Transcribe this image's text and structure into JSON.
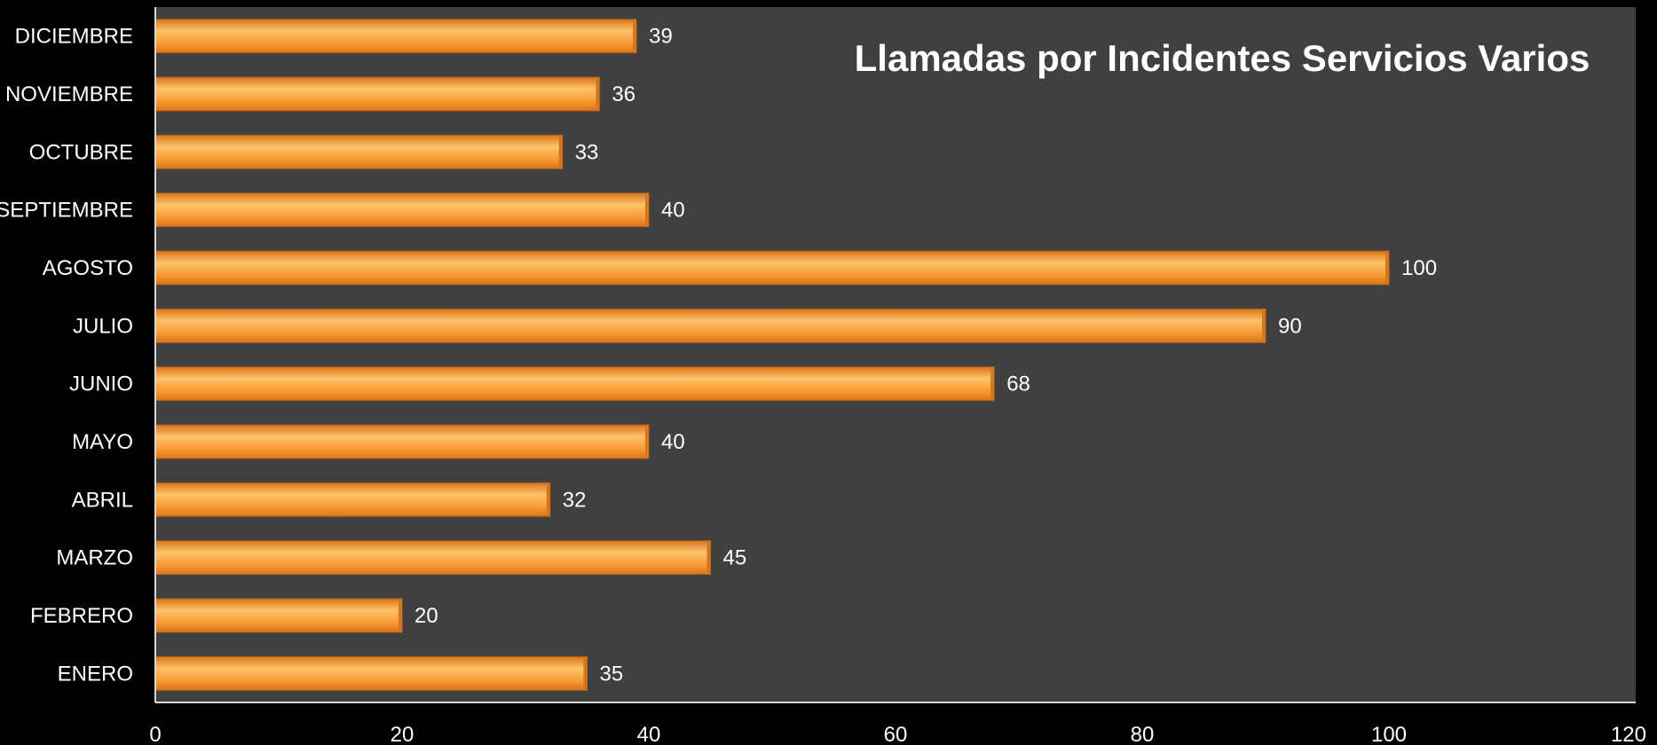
{
  "chart_data": {
    "type": "bar",
    "orientation": "horizontal",
    "title": "Llamadas por Incidentes Servicios Varios",
    "xlabel": "",
    "ylabel": "",
    "categories": [
      "ENERO",
      "FEBRERO",
      "MARZO",
      "ABRIL",
      "MAYO",
      "JUNIO",
      "JULIO",
      "AGOSTO",
      "SEPTIEMBRE",
      "OCTUBRE",
      "NOVIEMBRE",
      "DICIEMBRE"
    ],
    "values": [
      35,
      20,
      45,
      32,
      40,
      68,
      90,
      100,
      40,
      33,
      36,
      39
    ],
    "xlim": [
      0,
      120
    ],
    "xticks": [
      0,
      20,
      40,
      60,
      80,
      100,
      120
    ],
    "grid": false,
    "legend": "none",
    "data_labels": true,
    "colors": {
      "bar": "#f7962f",
      "bar_light": "#fdc46b",
      "bar_dark": "#d8741a",
      "plot_background": "#404040",
      "page_background": "#000000",
      "text": "#ffffff"
    }
  }
}
